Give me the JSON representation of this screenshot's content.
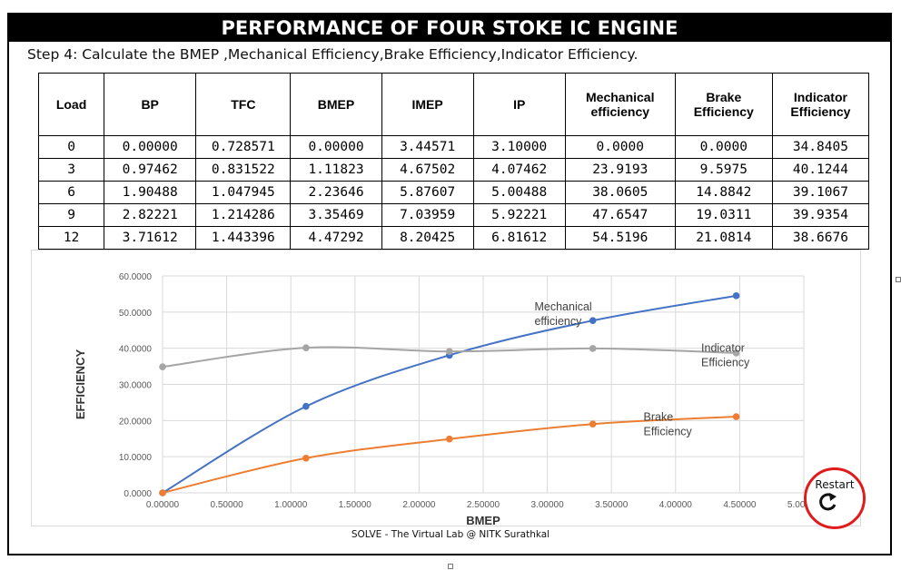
{
  "title": "PERFORMANCE OF FOUR STOKE IC ENGINE",
  "step_text": "Step 4: Calculate the BMEP ,Mechanical Efficiency,Brake Efficiency,Indicator Efficiency.",
  "table": {
    "headers": [
      "Load",
      "BP",
      "TFC",
      "BMEP",
      "IMEP",
      "IP",
      "Mechanical efficiency",
      "Brake Efficiency",
      "Indicator Efficiency"
    ],
    "rows": [
      [
        "0",
        "0.00000",
        "0.728571",
        "0.00000",
        "3.44571",
        "3.10000",
        "0.0000",
        "0.0000",
        "34.8405"
      ],
      [
        "3",
        "0.97462",
        "0.831522",
        "1.11823",
        "4.67502",
        "4.07462",
        "23.9193",
        "9.5975",
        "40.1244"
      ],
      [
        "6",
        "1.90488",
        "1.047945",
        "2.23646",
        "5.87607",
        "5.00488",
        "38.0605",
        "14.8842",
        "39.1067"
      ],
      [
        "9",
        "2.82221",
        "1.214286",
        "3.35469",
        "7.03959",
        "5.92221",
        "47.6547",
        "19.0311",
        "39.9354"
      ],
      [
        "12",
        "3.71612",
        "1.443396",
        "4.47292",
        "8.20425",
        "6.81612",
        "54.5196",
        "21.0814",
        "38.6676"
      ]
    ]
  },
  "chart_data": {
    "type": "line",
    "xlabel": "BMEP",
    "ylabel": "EFFICIENCY",
    "xlim": [
      0,
      5
    ],
    "ylim": [
      0,
      60
    ],
    "x_ticks": [
      "0.00000",
      "0.50000",
      "1.00000",
      "1.50000",
      "2.00000",
      "2.50000",
      "3.00000",
      "3.50000",
      "4.00000",
      "4.50000",
      "5.00000"
    ],
    "y_ticks": [
      "0.0000",
      "10.0000",
      "20.0000",
      "30.0000",
      "40.0000",
      "50.0000",
      "60.0000"
    ],
    "grid": true,
    "x": [
      0.0,
      1.11823,
      2.23646,
      3.35469,
      4.47292
    ],
    "series": [
      {
        "name": "Mechanical efficiency",
        "label_lines": [
          "Mechanical",
          "efficiency"
        ],
        "color": "#4472c4",
        "values": [
          0.0,
          23.9193,
          38.0605,
          47.6547,
          54.5196
        ]
      },
      {
        "name": "Indicator Efficiency",
        "label_lines": [
          "Indicator",
          "Efficiency"
        ],
        "color": "#a5a5a5",
        "values": [
          34.8405,
          40.1244,
          39.1067,
          39.9354,
          38.6676
        ]
      },
      {
        "name": "Brake Efficiency",
        "label_lines": [
          "Brake",
          "Efficiency"
        ],
        "color": "#ed7d31",
        "values": [
          0.0,
          9.5975,
          14.8842,
          19.0311,
          21.0814
        ]
      }
    ]
  },
  "footer": "SOLVE - The Virtual Lab @ NITK Surathkal",
  "restart": {
    "label": "Restart",
    "icon": "restart-icon",
    "color": "#e01b1b"
  }
}
